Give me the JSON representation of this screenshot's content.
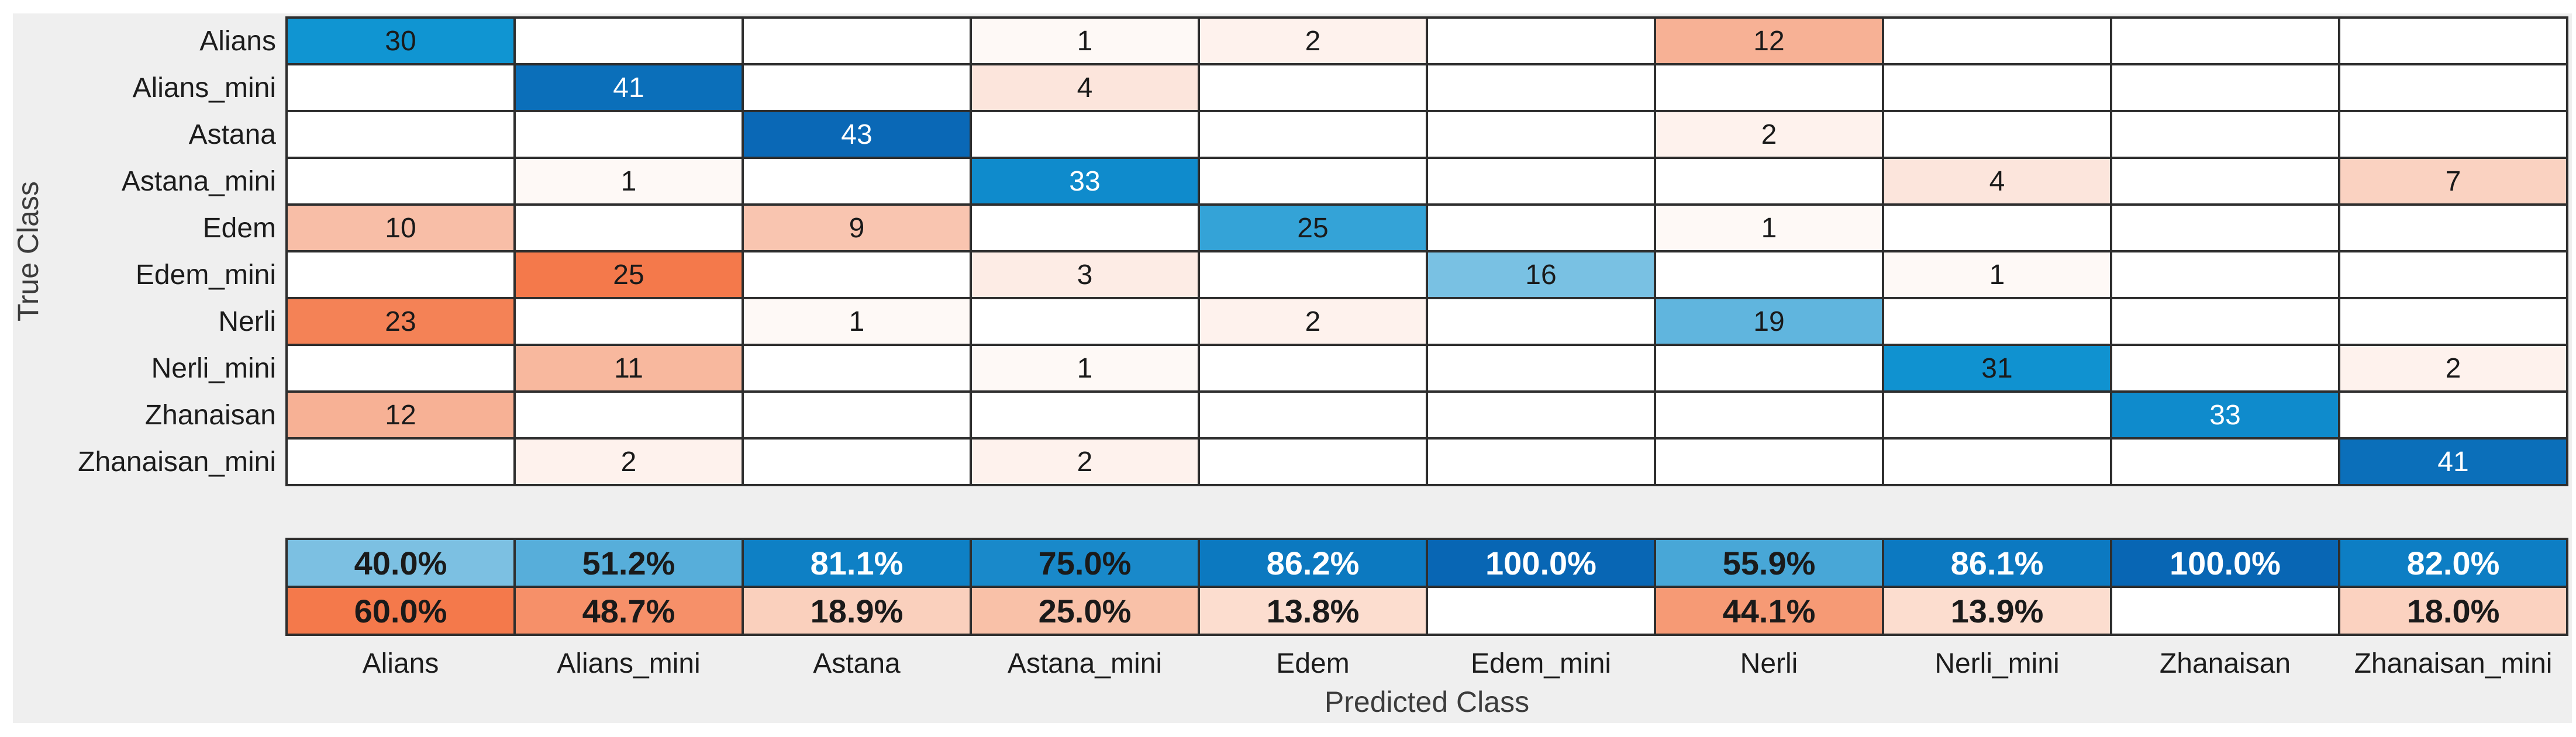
{
  "figure": {
    "background_color": "#efefef",
    "page_background": "#ffffff",
    "grid_line_color": "#2e2e2e"
  },
  "chart_data": {
    "type": "heatmap",
    "variant": "confusion-matrix",
    "title": "",
    "xlabel": "Predicted Class",
    "ylabel": "True Class",
    "legend_position": "none",
    "grid": "on",
    "classes": [
      "Alians",
      "Alians_mini",
      "Astana",
      "Astana_mini",
      "Edem",
      "Edem_mini",
      "Nerli",
      "Nerli_mini",
      "Zhanaisan",
      "Zhanaisan_mini"
    ],
    "matrix": [
      [
        30,
        null,
        null,
        1,
        2,
        null,
        12,
        null,
        null,
        null
      ],
      [
        null,
        41,
        null,
        4,
        null,
        null,
        null,
        null,
        null,
        null
      ],
      [
        null,
        null,
        43,
        null,
        null,
        null,
        2,
        null,
        null,
        null
      ],
      [
        null,
        1,
        null,
        33,
        null,
        null,
        null,
        4,
        null,
        7
      ],
      [
        10,
        null,
        9,
        null,
        25,
        null,
        1,
        null,
        null,
        null
      ],
      [
        null,
        25,
        null,
        3,
        null,
        16,
        null,
        1,
        null,
        null
      ],
      [
        23,
        null,
        1,
        null,
        2,
        null,
        19,
        null,
        null,
        null
      ],
      [
        null,
        11,
        null,
        1,
        null,
        null,
        null,
        31,
        null,
        2
      ],
      [
        12,
        null,
        null,
        null,
        null,
        null,
        null,
        null,
        33,
        null
      ],
      [
        null,
        2,
        null,
        2,
        null,
        null,
        null,
        null,
        null,
        41
      ]
    ],
    "column_summary": {
      "correct_pct": [
        "40.0%",
        "51.2%",
        "81.1%",
        "75.0%",
        "86.2%",
        "100.0%",
        "55.9%",
        "86.1%",
        "100.0%",
        "82.0%"
      ],
      "incorrect_pct": [
        "60.0%",
        "48.7%",
        "18.9%",
        "25.0%",
        "13.8%",
        "",
        "44.1%",
        "13.9%",
        "",
        "18.0%"
      ]
    },
    "colors": {
      "diagonal_ramp": [
        [
          0,
          "#ffffff"
        ],
        [
          20,
          "#58b1dc"
        ],
        [
          30,
          "#1095d2"
        ],
        [
          43,
          "#0a68b6"
        ]
      ],
      "offdiagonal_ramp": [
        [
          0,
          "#ffffff"
        ],
        [
          12,
          "#f7b195"
        ],
        [
          25,
          "#f4794b"
        ]
      ],
      "summary_correct_ramp": [
        [
          0,
          "#ffffff"
        ],
        [
          40,
          "#7cc0e2"
        ],
        [
          60,
          "#3aa0d4"
        ],
        [
          80,
          "#0e81c6"
        ],
        [
          100,
          "#0866b4"
        ]
      ],
      "summary_incorrect_ramp": [
        [
          0,
          "#ffffff"
        ],
        [
          25,
          "#f9c1a8"
        ],
        [
          60,
          "#f4794b"
        ],
        [
          100,
          "#ef5a28"
        ]
      ],
      "dark_text": "#1a1a1a",
      "light_text": "#ffffff",
      "white_text_threshold_count": 33,
      "white_text_threshold_pct": 80
    }
  }
}
